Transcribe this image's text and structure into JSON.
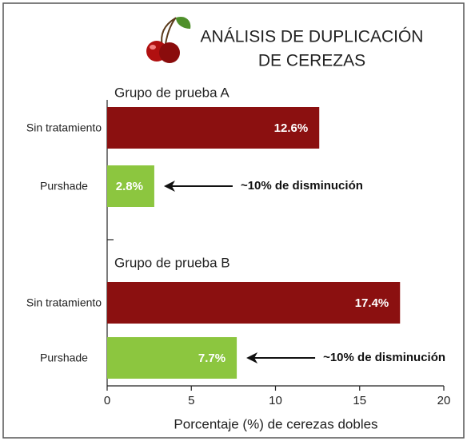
{
  "chart_data": {
    "type": "bar",
    "orientation": "horizontal",
    "title": [
      "ANÁLISIS DE DUPLICACIÓN",
      "DE CEREZAS"
    ],
    "xlabel": "Porcentaje (%) de cerezas dobles",
    "xlim": [
      0,
      20
    ],
    "xticks": [
      0,
      5,
      10,
      15,
      20
    ],
    "colors": [
      "#8b1010",
      "#8cc63f"
    ],
    "groups": [
      {
        "name": "Grupo de prueba A",
        "categories": [
          "Sin tratamiento",
          "Purshade"
        ],
        "values": [
          12.6,
          2.8
        ],
        "value_labels": [
          "12.6%",
          "2.8%"
        ],
        "annotation": "~10% de disminución"
      },
      {
        "name": "Grupo de prueba B",
        "categories": [
          "Sin tratamiento",
          "Purshade"
        ],
        "values": [
          17.4,
          7.7
        ],
        "value_labels": [
          "17.4%",
          "7.7%"
        ],
        "annotation": "~10% de disminución"
      }
    ]
  }
}
